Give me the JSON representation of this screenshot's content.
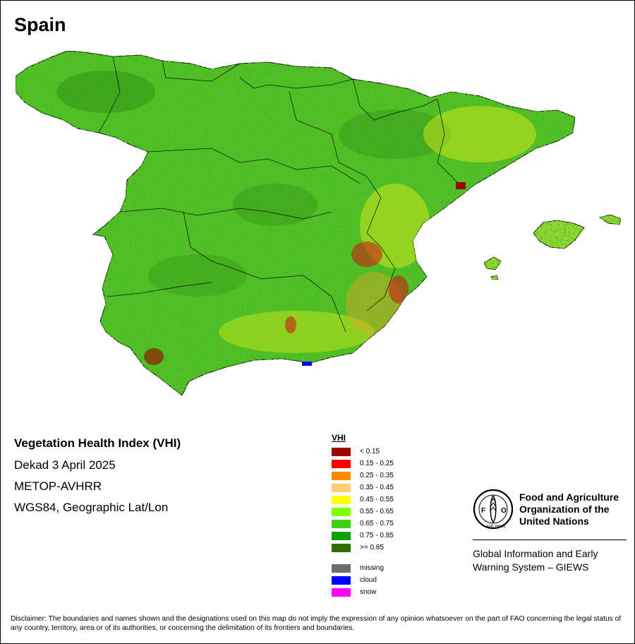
{
  "map": {
    "title": "Spain"
  },
  "info": {
    "title": "Vegetation Health Index (VHI)",
    "period": "Dekad 3 April 2025",
    "sensor": "METOP-AVHRR",
    "projection": "WGS84, Geographic Lat/Lon"
  },
  "legend": {
    "heading": "VHI",
    "classes": [
      {
        "label": "< 0.15",
        "color": "#a00000"
      },
      {
        "label": "0.15 - 0.25",
        "color": "#ff0000"
      },
      {
        "label": "0.25 - 0.35",
        "color": "#ff8c00"
      },
      {
        "label": "0.35 - 0.45",
        "color": "#ffcc7a"
      },
      {
        "label": "0.45 - 0.55",
        "color": "#ffff00"
      },
      {
        "label": "0.55 - 0.65",
        "color": "#7fff00"
      },
      {
        "label": "0.65 - 0.75",
        "color": "#3fcf16"
      },
      {
        "label": "0.75 - 0.85",
        "color": "#119f0a"
      },
      {
        "label": ">= 0.85",
        "color": "#2f7003"
      }
    ],
    "special": [
      {
        "label": "missing",
        "color": "#6e6e6e"
      },
      {
        "label": "cloud",
        "color": "#0000ff"
      },
      {
        "label": "snow",
        "color": "#ff00ff"
      }
    ]
  },
  "organization": {
    "logo_text": "FAO",
    "logo_motto": "FIAT PANIS",
    "name_line1": "Food and Agriculture",
    "name_line2": "Organization of the",
    "name_line3": "United Nations",
    "system_line1": "Global Information and Early",
    "system_line2": "Warning System – GIEWS"
  },
  "disclaimer": "Disclaimer: The boundaries and names shown and the designations used on this map do not imply the expression of any opinion whatsoever on the part of FAO concerning the legal status of any country, territory, area or of its authorities, or concerning the delimitation of its frontiers and boundaries.",
  "colors": {
    "land_base": "#45c21a",
    "land_dark": "#2a8a10",
    "land_light": "#7fff00",
    "stress_yellow": "#e6ef1a",
    "stress_orange": "#f0a02a",
    "stress_red": "#d41010"
  }
}
